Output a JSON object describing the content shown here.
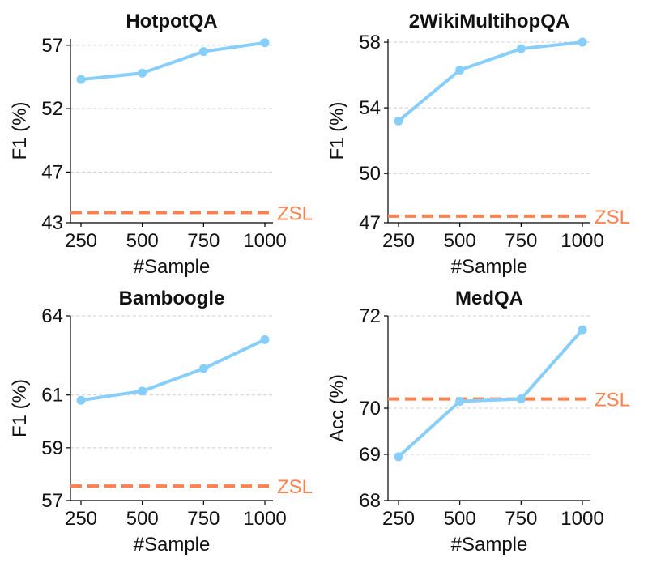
{
  "colors": {
    "series": "#87cefa",
    "baseline": "#ff8150",
    "grid": "#cccccc",
    "axis": "#000000"
  },
  "chart_data": [
    {
      "type": "line",
      "title": "HotpotQA",
      "xlabel": "#Sample",
      "ylabel": "F1 (%)",
      "x": [
        250,
        500,
        750,
        1000
      ],
      "x_ticks": [
        "250",
        "500",
        "750",
        "1000"
      ],
      "y_ticks": [
        43,
        47,
        52,
        57
      ],
      "ylim": [
        43,
        57.5
      ],
      "grid": "horizontal dashed",
      "series": [
        {
          "values": [
            54.3,
            54.8,
            56.5,
            57.2
          ]
        }
      ],
      "baseline": {
        "label": "ZSL",
        "value": 43.8
      }
    },
    {
      "type": "line",
      "title": "2WikiMultihopQA",
      "xlabel": "#Sample",
      "ylabel": "F1 (%)",
      "x": [
        250,
        500,
        750,
        1000
      ],
      "x_ticks": [
        "250",
        "500",
        "750",
        "1000"
      ],
      "y_ticks": [
        47,
        50,
        54,
        58
      ],
      "ylim": [
        47,
        58.2
      ],
      "grid": "horizontal dashed",
      "series": [
        {
          "values": [
            53.2,
            56.3,
            57.6,
            58.0
          ]
        }
      ],
      "baseline": {
        "label": "ZSL",
        "value": 47.4
      }
    },
    {
      "type": "line",
      "title": "Bamboogle",
      "xlabel": "#Sample",
      "ylabel": "F1 (%)",
      "x": [
        250,
        500,
        750,
        1000
      ],
      "x_ticks": [
        "250",
        "500",
        "750",
        "1000"
      ],
      "y_ticks": [
        57,
        59,
        61,
        64
      ],
      "ylim": [
        57,
        64
      ],
      "grid": "horizontal dashed",
      "series": [
        {
          "values": [
            60.8,
            61.15,
            62.0,
            63.1
          ]
        }
      ],
      "baseline": {
        "label": "ZSL",
        "value": 57.55
      }
    },
    {
      "type": "line",
      "title": "MedQA",
      "xlabel": "#Sample",
      "ylabel": "Acc (%)",
      "x": [
        250,
        500,
        750,
        1000
      ],
      "x_ticks": [
        "250",
        "500",
        "750",
        "1000"
      ],
      "y_ticks": [
        68,
        69,
        70,
        72
      ],
      "ylim": [
        68,
        72
      ],
      "grid": "horizontal dashed",
      "series": [
        {
          "values": [
            68.95,
            70.15,
            70.2,
            71.7
          ]
        }
      ],
      "baseline": {
        "label": "ZSL",
        "value": 70.2
      }
    }
  ]
}
